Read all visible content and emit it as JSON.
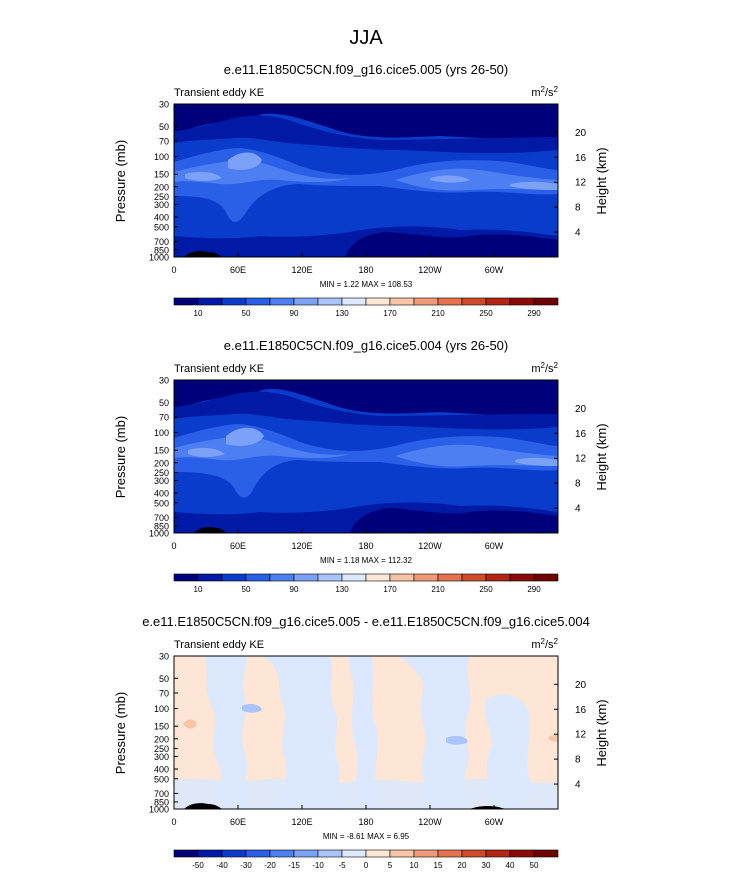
{
  "page_title": "JJA",
  "chart_data": [
    {
      "type": "heatmap",
      "title": "e.e11.E1850C5CN.f09_g16.cice5.005 (yrs 26-50)",
      "subtitle_left": "Transient eddy KE",
      "units": {
        "base": "m",
        "sup1": "2",
        "mid": "/s",
        "sup2": "2"
      },
      "ylabel": "Pressure (mb)",
      "ylabel_right": "Height (km)",
      "xticks": [
        "0",
        "60E",
        "120E",
        "180",
        "120W",
        "60W"
      ],
      "yticks": [
        "30",
        "50",
        "70",
        "100",
        "150",
        "200",
        "250",
        "300",
        "400",
        "500",
        "700",
        "850",
        "1000"
      ],
      "yticks_right": [
        "20",
        "16",
        "12",
        "8",
        "4"
      ],
      "min_max_text": "MIN =   1.22  MAX = 108.53",
      "min": 1.22,
      "max": 108.53,
      "colorbar_labels": [
        "10",
        "50",
        "90",
        "130",
        "170",
        "210",
        "250",
        "290"
      ]
    },
    {
      "type": "heatmap",
      "title": "e.e11.E1850C5CN.f09_g16.cice5.004 (yrs 26-50)",
      "subtitle_left": "Transient eddy KE",
      "units": {
        "base": "m",
        "sup1": "2",
        "mid": "/s",
        "sup2": "2"
      },
      "ylabel": "Pressure (mb)",
      "ylabel_right": "Height (km)",
      "xticks": [
        "0",
        "60E",
        "120E",
        "180",
        "120W",
        "60W"
      ],
      "yticks": [
        "30",
        "50",
        "70",
        "100",
        "150",
        "200",
        "250",
        "300",
        "400",
        "500",
        "700",
        "850",
        "1000"
      ],
      "yticks_right": [
        "20",
        "16",
        "12",
        "8",
        "4"
      ],
      "min_max_text": "MIN =   1.18  MAX = 112.32",
      "min": 1.18,
      "max": 112.32,
      "colorbar_labels": [
        "10",
        "50",
        "90",
        "130",
        "170",
        "210",
        "250",
        "290"
      ]
    },
    {
      "type": "heatmap",
      "title": "e.e11.E1850C5CN.f09_g16.cice5.005 - e.e11.E1850C5CN.f09_g16.cice5.004",
      "subtitle_left": "Transient eddy KE",
      "units": {
        "base": "m",
        "sup1": "2",
        "mid": "/s",
        "sup2": "2"
      },
      "ylabel": "Pressure (mb)",
      "ylabel_right": "Height (km)",
      "xticks": [
        "0",
        "60E",
        "120E",
        "180",
        "120W",
        "60W"
      ],
      "yticks": [
        "30",
        "50",
        "70",
        "100",
        "150",
        "200",
        "250",
        "300",
        "400",
        "500",
        "700",
        "850",
        "1000"
      ],
      "yticks_right": [
        "20",
        "16",
        "12",
        "8",
        "4"
      ],
      "min_max_text": "MIN =  -8.61  MAX =   6.95",
      "min": -8.61,
      "max": 6.95,
      "colorbar_labels": [
        "-50",
        "-40",
        "-30",
        "-20",
        "-15",
        "-10",
        "-5",
        "0",
        "5",
        "10",
        "15",
        "20",
        "30",
        "40",
        "50"
      ]
    }
  ],
  "palettes": {
    "ke": [
      "#00007a",
      "#001aa6",
      "#0a3ccc",
      "#2a5fe8",
      "#4d7ff2",
      "#7ba2f6",
      "#a9c4fa",
      "#dbe8fd",
      "#fde6d6",
      "#f8c4a6",
      "#f29a78",
      "#e6714f",
      "#d04a2c",
      "#b22614",
      "#8c0a08",
      "#6e0000"
    ],
    "diff": [
      "#00007a",
      "#001aa6",
      "#0a3ccc",
      "#2a5fe8",
      "#4d7ff2",
      "#7ba2f6",
      "#a9c4fa",
      "#dbe8fd",
      "#fde6d6",
      "#f8c4a6",
      "#f29a78",
      "#e6714f",
      "#d04a2c",
      "#b22614",
      "#8c0a08",
      "#6e0000"
    ],
    "ground": "#000000"
  }
}
